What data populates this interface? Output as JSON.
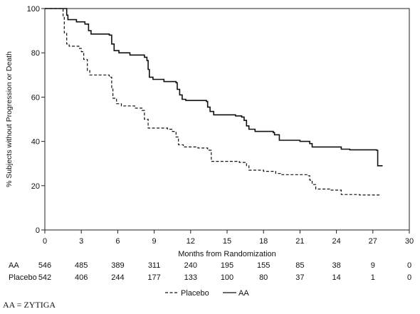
{
  "chart_data": {
    "type": "line",
    "title": "",
    "xlabel": "Months from Randomization",
    "ylabel": "% Subjects without Progression or Death",
    "xlim": [
      0,
      30
    ],
    "ylim": [
      0,
      100
    ],
    "x_ticks": [
      0,
      3,
      6,
      9,
      12,
      15,
      18,
      21,
      24,
      27,
      30
    ],
    "y_ticks": [
      0,
      20,
      40,
      60,
      80,
      100
    ],
    "grid": false,
    "legend": {
      "position": "bottom-center",
      "entries": [
        "Placebo",
        "AA"
      ]
    },
    "series": [
      {
        "name": "AA",
        "style": "solid",
        "color": "#111111",
        "points": [
          [
            0,
            100
          ],
          [
            1.6,
            100
          ],
          [
            1.8,
            97
          ],
          [
            1.9,
            95
          ],
          [
            2.6,
            94
          ],
          [
            3.3,
            93
          ],
          [
            3.6,
            90
          ],
          [
            3.8,
            88.5
          ],
          [
            5.3,
            88
          ],
          [
            5.5,
            84
          ],
          [
            5.7,
            81
          ],
          [
            6.1,
            80
          ],
          [
            7.0,
            79
          ],
          [
            8.2,
            78
          ],
          [
            8.4,
            76.5
          ],
          [
            8.5,
            72.5
          ],
          [
            8.6,
            69
          ],
          [
            8.9,
            68
          ],
          [
            9.8,
            67
          ],
          [
            10.8,
            66.5
          ],
          [
            10.9,
            63.5
          ],
          [
            11.1,
            61
          ],
          [
            11.3,
            59
          ],
          [
            11.6,
            58.5
          ],
          [
            13.3,
            58
          ],
          [
            13.4,
            55.5
          ],
          [
            13.6,
            53.5
          ],
          [
            13.9,
            52
          ],
          [
            15.7,
            51.5
          ],
          [
            16.2,
            51
          ],
          [
            16.4,
            49.5
          ],
          [
            16.6,
            47
          ],
          [
            16.8,
            45.5
          ],
          [
            17.3,
            44.5
          ],
          [
            18.8,
            44
          ],
          [
            18.9,
            43
          ],
          [
            19.3,
            40.5
          ],
          [
            21.0,
            40
          ],
          [
            21.8,
            39
          ],
          [
            22.0,
            37.5
          ],
          [
            24.4,
            36.5
          ],
          [
            25.1,
            36.2
          ],
          [
            27.3,
            36
          ],
          [
            27.4,
            29
          ],
          [
            27.8,
            29
          ]
        ]
      },
      {
        "name": "Placebo",
        "style": "dashed",
        "color": "#111111",
        "points": [
          [
            0,
            100
          ],
          [
            1.4,
            100
          ],
          [
            1.5,
            96
          ],
          [
            1.6,
            89
          ],
          [
            1.8,
            84
          ],
          [
            2.0,
            83
          ],
          [
            2.8,
            82
          ],
          [
            3.0,
            80.5
          ],
          [
            3.2,
            77
          ],
          [
            3.5,
            72
          ],
          [
            3.7,
            70
          ],
          [
            5.3,
            69
          ],
          [
            5.5,
            64
          ],
          [
            5.6,
            59.5
          ],
          [
            5.9,
            57
          ],
          [
            6.3,
            56
          ],
          [
            7.4,
            55
          ],
          [
            8.0,
            54
          ],
          [
            8.2,
            50
          ],
          [
            8.5,
            46
          ],
          [
            10.1,
            45.5
          ],
          [
            10.5,
            44.5
          ],
          [
            10.8,
            42
          ],
          [
            11.0,
            38.5
          ],
          [
            11.4,
            37.5
          ],
          [
            12.6,
            37
          ],
          [
            13.4,
            36
          ],
          [
            13.7,
            31
          ],
          [
            16.0,
            30.5
          ],
          [
            16.6,
            29
          ],
          [
            16.8,
            27
          ],
          [
            18.0,
            26.5
          ],
          [
            19.0,
            25.5
          ],
          [
            19.4,
            25
          ],
          [
            21.7,
            24.5
          ],
          [
            21.8,
            22.5
          ],
          [
            22.0,
            20.5
          ],
          [
            22.3,
            18.5
          ],
          [
            23.5,
            18
          ],
          [
            24.4,
            16
          ],
          [
            25.9,
            15.8
          ],
          [
            27.7,
            15.8
          ]
        ]
      }
    ],
    "at_risk": {
      "rows": [
        {
          "label": "AA",
          "counts": [
            "546",
            "485",
            "389",
            "311",
            "240",
            "195",
            "155",
            "85",
            "38",
            "9",
            "0"
          ]
        },
        {
          "label": "Placebo",
          "counts": [
            "542",
            "406",
            "244",
            "177",
            "133",
            "100",
            "80",
            "37",
            "14",
            "1",
            "0"
          ]
        }
      ]
    }
  },
  "footnote": "AA = ZYTIGA"
}
